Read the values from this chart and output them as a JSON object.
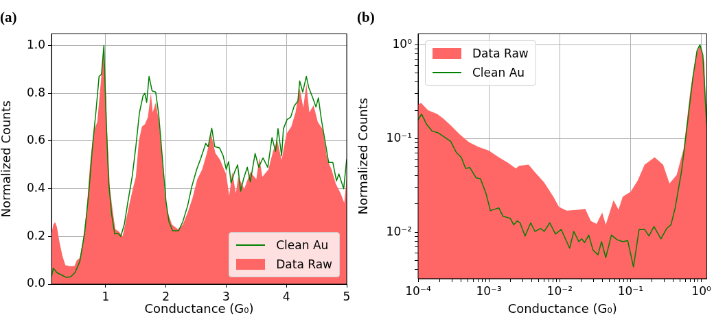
{
  "chart_data": [
    {
      "type": "line",
      "title": "(a)",
      "xlabel": "Conductance (G₀)",
      "ylabel": "Normalized Counts",
      "xlim": [
        0.1,
        5
      ],
      "ylim": [
        0,
        1.05
      ],
      "xticks": [
        1,
        2,
        3,
        4,
        5
      ],
      "yticks": [
        {
          "value": 0,
          "label": "0.0"
        },
        {
          "value": 0.2,
          "label": "0.2"
        },
        {
          "value": 0.4,
          "label": "0.4"
        },
        {
          "value": 0.6,
          "label": "0.6"
        },
        {
          "value": 0.8,
          "label": "0.8"
        },
        {
          "value": 1,
          "label": "1.0"
        }
      ],
      "grid": true,
      "legend": "bottom right",
      "series": [
        {
          "name": "Clean Au",
          "type": "line",
          "color": "#008000",
          "x": [
            0.1,
            0.13,
            0.19,
            0.27,
            0.34,
            0.42,
            0.49,
            0.57,
            0.65,
            0.72,
            0.78,
            0.84,
            0.89,
            0.93,
            0.97,
            1.01,
            1.05,
            1.1,
            1.15,
            1.2,
            1.25,
            1.31,
            1.37,
            1.44,
            1.5,
            1.56,
            1.62,
            1.65,
            1.68,
            1.72,
            1.77,
            1.83,
            1.88,
            1.94,
            2.0,
            2.05,
            2.11,
            2.21,
            2.28,
            2.36,
            2.43,
            2.51,
            2.58,
            2.66,
            2.7,
            2.76,
            2.81,
            2.89,
            2.95,
            3.0,
            3.04,
            3.08,
            3.14,
            3.19,
            3.24,
            3.29,
            3.35,
            3.4,
            3.48,
            3.54,
            3.61,
            3.69,
            3.76,
            3.82,
            3.86,
            3.92,
            3.95,
            4.01,
            4.07,
            4.13,
            4.19,
            4.22,
            4.27,
            4.33,
            4.37,
            4.43,
            4.49,
            4.53,
            4.58,
            4.64,
            4.7,
            4.77,
            4.83,
            4.87,
            4.95,
            5.0
          ],
          "values": [
            0.03,
            0.067,
            0.048,
            0.038,
            0.029,
            0.031,
            0.048,
            0.095,
            0.214,
            0.386,
            0.576,
            0.729,
            0.871,
            0.88,
            1.0,
            0.67,
            0.424,
            0.29,
            0.21,
            0.214,
            0.2,
            0.252,
            0.348,
            0.452,
            0.576,
            0.719,
            0.79,
            0.8,
            0.762,
            0.871,
            0.81,
            0.805,
            0.71,
            0.529,
            0.348,
            0.262,
            0.224,
            0.224,
            0.262,
            0.329,
            0.41,
            0.481,
            0.529,
            0.59,
            0.576,
            0.654,
            0.576,
            0.571,
            0.538,
            0.481,
            0.514,
            0.424,
            0.471,
            0.5,
            0.39,
            0.443,
            0.49,
            0.429,
            0.548,
            0.49,
            0.529,
            0.49,
            0.614,
            0.557,
            0.652,
            0.538,
            0.652,
            0.69,
            0.7,
            0.748,
            0.767,
            0.852,
            0.805,
            0.871,
            0.824,
            0.786,
            0.743,
            0.781,
            0.69,
            0.6,
            0.51,
            0.51,
            0.433,
            0.462,
            0.4,
            0.524
          ]
        },
        {
          "name": "Data Raw",
          "type": "area",
          "color": "#ff6666",
          "x": [
            0.1,
            0.13,
            0.16,
            0.19,
            0.23,
            0.28,
            0.33,
            0.4,
            0.48,
            0.52,
            0.57,
            0.62,
            0.68,
            0.74,
            0.8,
            0.86,
            0.92,
            0.96,
            0.99,
            1.03,
            1.07,
            1.12,
            1.16,
            1.22,
            1.28,
            1.33,
            1.38,
            1.45,
            1.5,
            1.55,
            1.6,
            1.65,
            1.7,
            1.75,
            1.78,
            1.83,
            1.88,
            1.93,
            1.98,
            2.03,
            2.1,
            2.2,
            2.28,
            2.36,
            2.44,
            2.52,
            2.6,
            2.68,
            2.75,
            2.82,
            2.9,
            3.0,
            3.05,
            3.1,
            3.16,
            3.2,
            3.3,
            3.4,
            3.5,
            3.55,
            3.6,
            3.7,
            3.78,
            3.85,
            3.92,
            4.0,
            4.08,
            4.15,
            4.22,
            4.28,
            4.33,
            4.38,
            4.45,
            4.52,
            4.6,
            4.68,
            4.75,
            4.82,
            4.9,
            4.96,
            5.0
          ],
          "values": [
            0.21,
            0.25,
            0.26,
            0.24,
            0.18,
            0.12,
            0.08,
            0.075,
            0.075,
            0.1,
            0.11,
            0.18,
            0.3,
            0.5,
            0.64,
            0.68,
            0.85,
            0.98,
            0.9,
            0.6,
            0.4,
            0.3,
            0.23,
            0.22,
            0.2,
            0.26,
            0.32,
            0.4,
            0.45,
            0.6,
            0.66,
            0.67,
            0.7,
            0.8,
            0.72,
            0.76,
            0.69,
            0.55,
            0.38,
            0.3,
            0.25,
            0.23,
            0.25,
            0.3,
            0.36,
            0.44,
            0.48,
            0.55,
            0.63,
            0.55,
            0.52,
            0.46,
            0.37,
            0.47,
            0.38,
            0.45,
            0.4,
            0.47,
            0.44,
            0.53,
            0.45,
            0.48,
            0.56,
            0.6,
            0.52,
            0.63,
            0.66,
            0.72,
            0.82,
            0.74,
            0.84,
            0.72,
            0.75,
            0.68,
            0.65,
            0.52,
            0.48,
            0.42,
            0.38,
            0.34,
            0.45
          ]
        }
      ]
    },
    {
      "type": "line",
      "title": "(b)",
      "xlabel": "Conductance (G₀)",
      "ylabel": "Normalized Counts",
      "log": "xy",
      "xlim": [
        0.0001,
        1.19
      ],
      "ylim": [
        0.0032,
        1.31
      ],
      "xticks": [
        {
          "value": 0.0001,
          "label": "10⁻⁴"
        },
        {
          "value": 0.0002,
          "label": null
        },
        {
          "value": 0.0003,
          "label": null
        },
        {
          "value": 0.0004,
          "label": null
        },
        {
          "value": 0.0005,
          "label": null
        },
        {
          "value": 0.0006,
          "label": null
        },
        {
          "value": 0.0007,
          "label": null
        },
        {
          "value": 0.0008,
          "label": null
        },
        {
          "value": 0.0009,
          "label": null
        },
        {
          "value": 0.001,
          "label": "10⁻³"
        },
        {
          "value": 0.002,
          "label": null
        },
        {
          "value": 0.003,
          "label": null
        },
        {
          "value": 0.004,
          "label": null
        },
        {
          "value": 0.005,
          "label": null
        },
        {
          "value": 0.006,
          "label": null
        },
        {
          "value": 0.007,
          "label": null
        },
        {
          "value": 0.008,
          "label": null
        },
        {
          "value": 0.009,
          "label": null
        },
        {
          "value": 0.01,
          "label": "10⁻²"
        },
        {
          "value": 0.02,
          "label": null
        },
        {
          "value": 0.03,
          "label": null
        },
        {
          "value": 0.04,
          "label": null
        },
        {
          "value": 0.05,
          "label": null
        },
        {
          "value": 0.06,
          "label": null
        },
        {
          "value": 0.07,
          "label": null
        },
        {
          "value": 0.08,
          "label": null
        },
        {
          "value": 0.09,
          "label": null
        },
        {
          "value": 0.1,
          "label": "10⁻¹"
        },
        {
          "value": 0.2,
          "label": null
        },
        {
          "value": 0.3,
          "label": null
        },
        {
          "value": 0.4,
          "label": null
        },
        {
          "value": 0.5,
          "label": null
        },
        {
          "value": 0.6,
          "label": null
        },
        {
          "value": 0.7,
          "label": null
        },
        {
          "value": 0.8,
          "label": null
        },
        {
          "value": 0.9,
          "label": null
        },
        {
          "value": 1,
          "label": "10⁰"
        }
      ],
      "yticks": [
        {
          "value": 0.004,
          "label": null
        },
        {
          "value": 0.005,
          "label": null
        },
        {
          "value": 0.006,
          "label": null
        },
        {
          "value": 0.007,
          "label": null
        },
        {
          "value": 0.008,
          "label": null
        },
        {
          "value": 0.009,
          "label": null
        },
        {
          "value": 0.01,
          "label": "10⁻²"
        },
        {
          "value": 0.02,
          "label": null
        },
        {
          "value": 0.03,
          "label": null
        },
        {
          "value": 0.04,
          "label": null
        },
        {
          "value": 0.05,
          "label": null
        },
        {
          "value": 0.06,
          "label": null
        },
        {
          "value": 0.07,
          "label": null
        },
        {
          "value": 0.08,
          "label": null
        },
        {
          "value": 0.09,
          "label": null
        },
        {
          "value": 0.1,
          "label": "10⁻¹"
        },
        {
          "value": 0.2,
          "label": null
        },
        {
          "value": 0.3,
          "label": null
        },
        {
          "value": 0.4,
          "label": null
        },
        {
          "value": 0.5,
          "label": null
        },
        {
          "value": 0.6,
          "label": null
        },
        {
          "value": 0.7,
          "label": null
        },
        {
          "value": 0.8,
          "label": null
        },
        {
          "value": 0.9,
          "label": null
        },
        {
          "value": 1,
          "label": "10⁰"
        }
      ],
      "grid": true,
      "legend": "top left",
      "series": [
        {
          "name": "Data Raw",
          "type": "area",
          "color": "#ff6666",
          "x": [
            0.0001,
            0.00011,
            0.000138,
            0.000186,
            0.000229,
            0.000288,
            0.000389,
            0.000525,
            0.000708,
            0.001,
            0.00138,
            0.00186,
            0.0024,
            0.00269,
            0.00363,
            0.00447,
            0.00603,
            0.00813,
            0.00977,
            0.0126,
            0.0186,
            0.0229,
            0.0275,
            0.0331,
            0.0398,
            0.0447,
            0.0575,
            0.0676,
            0.0776,
            0.1,
            0.126,
            0.158,
            0.219,
            0.288,
            0.355,
            0.447,
            0.562,
            0.692,
            0.832,
            0.955,
            1.1,
            1.19
          ],
          "values": [
            0.229,
            0.24,
            0.2,
            0.182,
            0.162,
            0.138,
            0.11,
            0.0912,
            0.0813,
            0.0741,
            0.063,
            0.055,
            0.0479,
            0.0513,
            0.0525,
            0.0437,
            0.0339,
            0.024,
            0.0186,
            0.017,
            0.0174,
            0.0178,
            0.0132,
            0.0123,
            0.0162,
            0.012,
            0.0219,
            0.0174,
            0.024,
            0.0269,
            0.0355,
            0.0525,
            0.063,
            0.0525,
            0.0331,
            0.0407,
            0.0776,
            0.302,
            0.741,
            1.0,
            0.661,
            0.129
          ]
        },
        {
          "name": "Clean Au",
          "type": "line",
          "color": "#008000",
          "x": [
            0.0001,
            0.000112,
            0.000132,
            0.000158,
            0.000191,
            0.000229,
            0.000288,
            0.000347,
            0.000407,
            0.000468,
            0.000537,
            0.000661,
            0.000759,
            0.000912,
            0.00105,
            0.00138,
            0.00158,
            0.002,
            0.00224,
            0.00251,
            0.00275,
            0.00324,
            0.00389,
            0.00447,
            0.00537,
            0.00603,
            0.00724,
            0.00871,
            0.0105,
            0.0138,
            0.0158,
            0.0186,
            0.0204,
            0.0224,
            0.0257,
            0.0295,
            0.0347,
            0.0389,
            0.0447,
            0.0537,
            0.0646,
            0.0776,
            0.0912,
            0.11,
            0.132,
            0.158,
            0.182,
            0.214,
            0.269,
            0.324,
            0.372,
            0.427,
            0.525,
            0.631,
            0.759,
            0.871,
            0.955,
            1.05,
            1.19
          ],
          "values": [
            0.158,
            0.182,
            0.141,
            0.12,
            0.115,
            0.105,
            0.0933,
            0.0708,
            0.063,
            0.0479,
            0.049,
            0.038,
            0.0372,
            0.0257,
            0.017,
            0.0182,
            0.0148,
            0.0141,
            0.012,
            0.0132,
            0.0126,
            0.00912,
            0.0126,
            0.0102,
            0.011,
            0.0102,
            0.0126,
            0.00955,
            0.0107,
            0.00676,
            0.0102,
            0.00794,
            0.00851,
            0.00776,
            0.00933,
            0.00646,
            0.00575,
            0.00794,
            0.00537,
            0.00933,
            0.00832,
            0.00794,
            0.00813,
            0.00427,
            0.0107,
            0.0107,
            0.00912,
            0.0115,
            0.00851,
            0.011,
            0.012,
            0.0182,
            0.0447,
            0.138,
            0.447,
            0.871,
            1.0,
            0.776,
            0.138
          ]
        }
      ]
    }
  ]
}
